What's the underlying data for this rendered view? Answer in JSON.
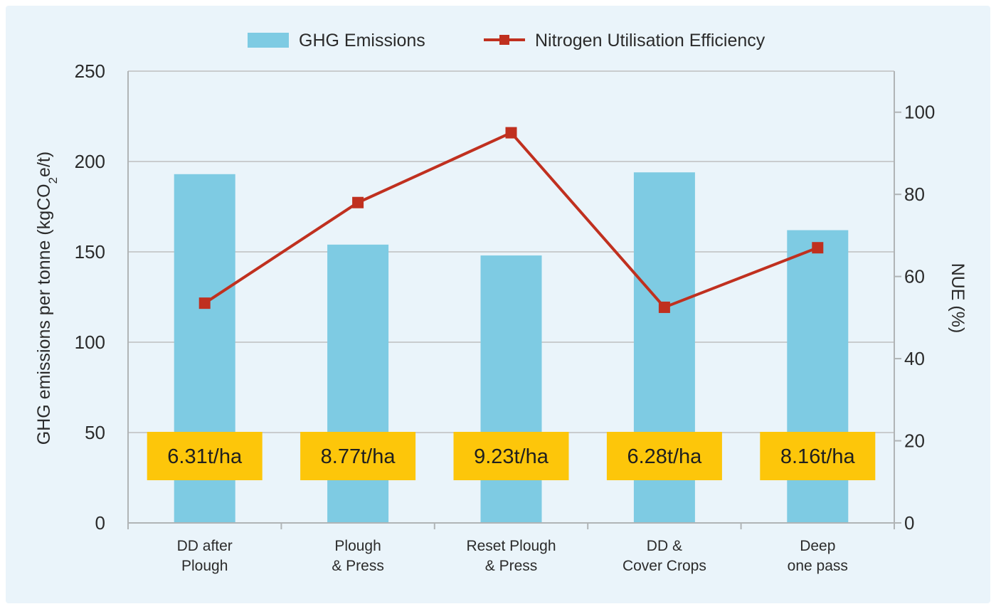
{
  "chart_data": {
    "type": "bar+line",
    "categories": [
      [
        "DD after",
        "Plough"
      ],
      [
        "Plough",
        "& Press"
      ],
      [
        "Reset Plough",
        "& Press"
      ],
      [
        "DD &",
        "Cover Crops"
      ],
      [
        "Deep",
        "one pass"
      ]
    ],
    "legend": {
      "placement": "top-center",
      "bar_label": "GHG Emissions",
      "line_label": "Nitrogen Utilisation Efficiency"
    },
    "y_left": {
      "label_main": "GHG emissions per tonne (kgCO",
      "label_sub": "2",
      "label_end": "e/t)",
      "range": [
        0,
        250
      ],
      "ticks": [
        0,
        50,
        100,
        150,
        200,
        250
      ]
    },
    "y_right": {
      "label": "NUE (%)",
      "range": [
        0,
        110
      ],
      "ticks": [
        0,
        20,
        40,
        60,
        80,
        100
      ]
    },
    "series": [
      {
        "name": "GHG Emissions",
        "type": "bar",
        "axis": "left",
        "values": [
          193,
          154,
          148,
          194,
          162
        ]
      },
      {
        "name": "Nitrogen Utilisation Efficiency",
        "type": "line",
        "axis": "right",
        "values": [
          53.5,
          78,
          95,
          52.5,
          67
        ]
      }
    ],
    "annotations": [
      "6.31t/ha",
      "8.77t/ha",
      "9.23t/ha",
      "6.28t/ha",
      "8.16t/ha"
    ],
    "grid": true,
    "colors": {
      "bar": "#7ecbe3",
      "line": "#c0301f",
      "label_box": "#fdc60a",
      "grid": "#c9ccce"
    }
  }
}
